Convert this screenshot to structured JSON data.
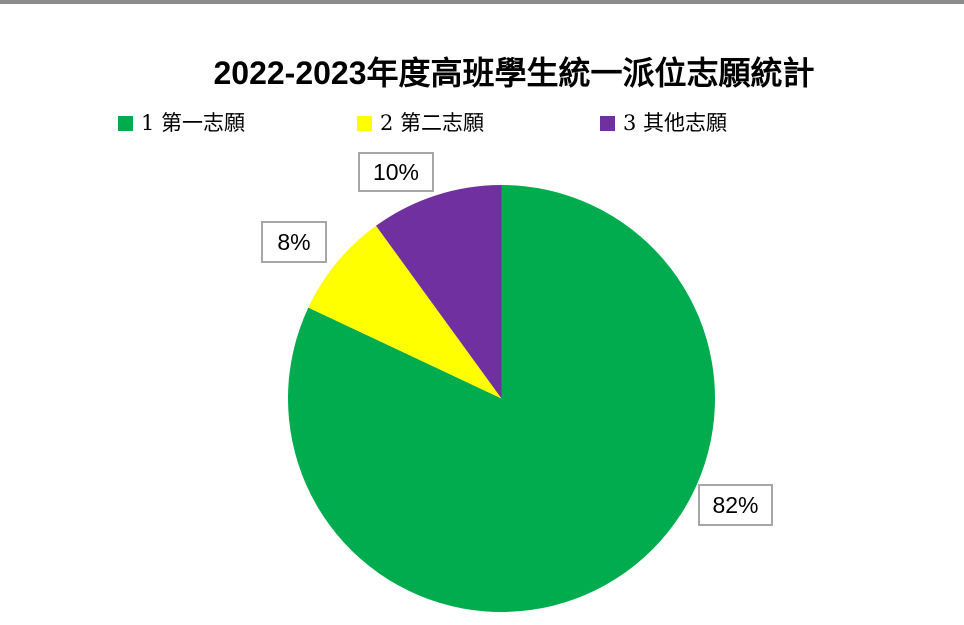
{
  "page": {
    "background": "#FFFFFF",
    "top_edge_color": "#8C8C8C"
  },
  "chart_data": {
    "type": "pie",
    "title": "2022-2023年度高班學生統一派位志願統計",
    "legend_position": "top",
    "direction": "clockwise",
    "start_angle_deg": 0,
    "label_box_border_color": "#A6A6A6",
    "slices": [
      {
        "label": "1 第一志願",
        "value": 82,
        "percent_label": "82%",
        "color": "#00AC4E"
      },
      {
        "label": "2 第二志願",
        "value": 8,
        "percent_label": "8%",
        "color": "#FFFF00"
      },
      {
        "label": "3 其他志願",
        "value": 10,
        "percent_label": "10%",
        "color": "#7030A0"
      }
    ]
  }
}
